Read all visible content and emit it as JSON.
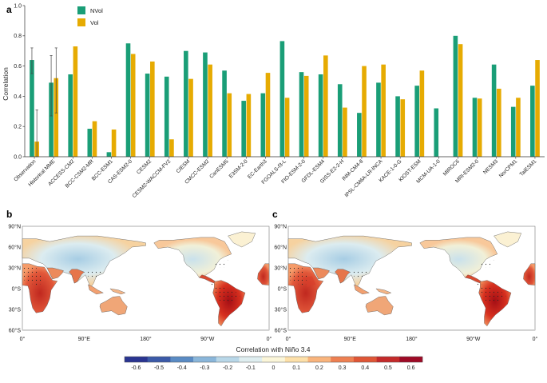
{
  "chart_data": [
    {
      "panel": "a",
      "type": "bar",
      "ylabel": "Correlation",
      "ylim": [
        0.0,
        1.0
      ],
      "yticks": [
        "0.0",
        "0.2",
        "0.4",
        "0.6",
        "0.8",
        "1.0"
      ],
      "categories": [
        "Observation",
        "Historical MME",
        "ACCESS-CM2",
        "BCC-CSM2-MR",
        "BCC-ESM1",
        "CAS-ESM2-0",
        "CESM2",
        "CESM2-WACCM-FV2",
        "CIESM",
        "CMCC-ESM2",
        "CanESM5",
        "E3SM-2-0",
        "EC-Earth3",
        "FGOALS-f3-L",
        "FIO-ESM-2-0",
        "GFDL-ESM4",
        "GISS-E2-2-H",
        "INM-CM4-8",
        "IPSL-CM6A-LR-INCA",
        "KACE-1-0-G",
        "KIOST-ESM",
        "MCM-UA-1-0",
        "MIROC6",
        "MRI-ESM2-0",
        "NESM3",
        "NorCPM1",
        "TaiESM1"
      ],
      "series": [
        {
          "name": "NVol",
          "color": "#1a9e77",
          "values": [
            0.64,
            0.49,
            0.545,
            0.185,
            0.03,
            0.75,
            0.55,
            0.53,
            0.7,
            0.69,
            0.57,
            0.37,
            0.42,
            0.765,
            0.56,
            0.545,
            0.48,
            0.29,
            0.49,
            0.4,
            0.47,
            0.32,
            0.8,
            0.39,
            0.61,
            0.33,
            0.47
          ]
        },
        {
          "name": "Vol",
          "color": "#e6ab02",
          "values": [
            0.1,
            0.52,
            0.73,
            0.235,
            0.18,
            0.68,
            0.63,
            0.115,
            0.515,
            0.61,
            0.42,
            0.415,
            0.555,
            0.39,
            0.535,
            0.67,
            0.325,
            0.6,
            0.61,
            0.38,
            0.57,
            null,
            0.745,
            0.385,
            0.45,
            0.39,
            0.64
          ]
        }
      ],
      "error_bars": [
        {
          "category": "Observation",
          "series": "NVol",
          "low": 0.55,
          "high": 0.72
        },
        {
          "category": "Observation",
          "series": "Vol",
          "low": 0.0,
          "high": 0.31
        },
        {
          "category": "Historical MME",
          "series": "NVol",
          "low": 0.27,
          "high": 0.67
        },
        {
          "category": "Historical MME",
          "series": "Vol",
          "low": 0.29,
          "high": 0.72
        }
      ],
      "legend": [
        "NVol",
        "Vol"
      ],
      "legend_position": "top-left"
    },
    {
      "panel": "b",
      "type": "heatmap",
      "description_label": "map",
      "lon_ticks": [
        "0°",
        "90°E",
        "180°",
        "90°W",
        "0°"
      ],
      "lat_ticks": [
        "90°N",
        "60°N",
        "30°N",
        "0°S",
        "30°S",
        "60°S"
      ]
    },
    {
      "panel": "c",
      "type": "heatmap",
      "lon_ticks": [
        "0°",
        "90°E",
        "180°",
        "90°W",
        "0°"
      ],
      "lat_ticks": [
        "90°N",
        "60°N",
        "30°N",
        "0°S",
        "30°S",
        "60°S"
      ]
    }
  ],
  "colorbar": {
    "title": "Correlation with Niño 3.4",
    "ticks": [
      "-0.6",
      "-0.5",
      "-0.4",
      "-0.3",
      "-0.2",
      "-0.1",
      "0",
      "0.1",
      "0.2",
      "0.3",
      "0.4",
      "0.5",
      "0.6"
    ],
    "colors": [
      "#2a3591",
      "#3b5aa8",
      "#5a8bc4",
      "#8ab6da",
      "#b8d7e8",
      "#dfeef0",
      "#fbf6d9",
      "#fde0a9",
      "#f9b47c",
      "#ee8052",
      "#df5636",
      "#c42a2a",
      "#9e0a26"
    ]
  },
  "panels": {
    "a": "a",
    "b": "b",
    "c": "c"
  }
}
